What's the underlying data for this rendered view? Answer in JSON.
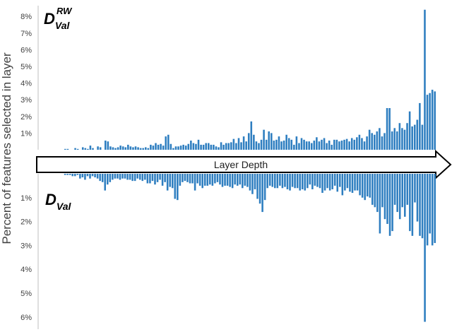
{
  "y_axis_label": "Percent of features selected in layer",
  "arrow_label": "Layer Depth",
  "bar_color": "#2E7EC0",
  "panels": [
    {
      "name": "top",
      "label": {
        "main": "D",
        "sub": "Val",
        "sup": "RW"
      }
    },
    {
      "name": "bottom",
      "label": {
        "main": "D",
        "sub": "Val",
        "sup": ""
      }
    }
  ],
  "chart_data": [
    {
      "type": "bar",
      "panel": "top",
      "title": "",
      "xlabel": "Layer Depth",
      "ylabel": "Percent of features selected in layer",
      "ylim": [
        0,
        8.5
      ],
      "yticks": [
        "1%",
        "2%",
        "3%",
        "4%",
        "5%",
        "6%",
        "7%",
        "8%"
      ],
      "tick_values": [
        1,
        2,
        3,
        4,
        5,
        6,
        7,
        8
      ],
      "grid": false,
      "values": [
        0.0,
        0.0,
        0.0,
        0.0,
        0.0,
        0.0,
        0.0,
        0.0,
        0.0,
        0.05,
        0.05,
        0.0,
        0.0,
        0.1,
        0.05,
        0.0,
        0.15,
        0.1,
        0.05,
        0.25,
        0.1,
        0.0,
        0.2,
        0.15,
        0.0,
        0.55,
        0.5,
        0.2,
        0.15,
        0.1,
        0.15,
        0.25,
        0.2,
        0.15,
        0.3,
        0.2,
        0.15,
        0.2,
        0.15,
        0.1,
        0.1,
        0.15,
        0.1,
        0.3,
        0.25,
        0.4,
        0.3,
        0.35,
        0.25,
        0.8,
        0.9,
        0.35,
        0.1,
        0.2,
        0.2,
        0.25,
        0.3,
        0.25,
        0.35,
        0.55,
        0.4,
        0.35,
        0.6,
        0.3,
        0.3,
        0.4,
        0.4,
        0.3,
        0.3,
        0.2,
        0.15,
        0.45,
        0.3,
        0.4,
        0.4,
        0.45,
        0.65,
        0.4,
        0.7,
        0.45,
        0.8,
        0.5,
        1.0,
        1.7,
        0.9,
        0.5,
        0.4,
        0.6,
        1.2,
        0.6,
        1.1,
        1.0,
        0.55,
        0.6,
        0.8,
        0.5,
        0.55,
        0.9,
        0.7,
        0.6,
        0.3,
        0.8,
        0.4,
        0.7,
        0.6,
        0.5,
        0.5,
        0.4,
        0.55,
        0.75,
        0.5,
        0.6,
        0.7,
        0.4,
        0.55,
        0.3,
        0.6,
        0.6,
        0.5,
        0.55,
        0.6,
        0.65,
        0.5,
        0.7,
        0.6,
        0.75,
        0.9,
        0.7,
        0.5,
        0.8,
        1.2,
        1.0,
        0.9,
        1.1,
        1.3,
        0.8,
        1.0,
        2.5,
        2.5,
        1.1,
        1.3,
        1.1,
        1.6,
        1.3,
        1.2,
        1.6,
        2.3,
        1.4,
        1.5,
        1.8,
        2.8,
        1.5,
        8.4,
        3.3,
        3.4,
        3.6,
        3.5
      ],
      "series": [
        {
          "name": "",
          "values": []
        }
      ]
    },
    {
      "type": "bar",
      "panel": "bottom",
      "title": "",
      "xlabel": "Layer Depth",
      "ylabel": "Percent of features selected in layer",
      "ylim": [
        0,
        6.3
      ],
      "yticks": [
        "1%",
        "2%",
        "3%",
        "4%",
        "5%",
        "6%"
      ],
      "tick_values": [
        1,
        2,
        3,
        4,
        5,
        6
      ],
      "grid": false,
      "values": [
        0.0,
        0.0,
        0.0,
        0.0,
        0.0,
        0.0,
        0.0,
        0.0,
        0.0,
        0.05,
        0.05,
        0.05,
        0.1,
        0.1,
        0.05,
        0.2,
        0.15,
        0.25,
        0.1,
        0.2,
        0.1,
        0.15,
        0.2,
        0.3,
        0.35,
        0.7,
        0.45,
        0.35,
        0.25,
        0.2,
        0.2,
        0.25,
        0.2,
        0.2,
        0.25,
        0.25,
        0.3,
        0.3,
        0.2,
        0.25,
        0.3,
        0.25,
        0.4,
        0.4,
        0.3,
        0.45,
        0.35,
        0.25,
        0.5,
        0.35,
        0.7,
        0.55,
        0.6,
        1.05,
        1.1,
        0.5,
        0.35,
        0.3,
        0.35,
        0.4,
        0.4,
        0.7,
        0.4,
        0.5,
        0.6,
        0.5,
        0.5,
        0.45,
        0.5,
        0.4,
        0.35,
        0.45,
        0.55,
        0.5,
        0.5,
        0.55,
        0.6,
        0.45,
        0.5,
        0.45,
        0.6,
        0.5,
        0.55,
        0.7,
        0.85,
        0.65,
        1.05,
        1.25,
        1.6,
        1.1,
        0.6,
        0.5,
        0.55,
        0.6,
        0.6,
        0.5,
        0.6,
        0.55,
        0.65,
        0.7,
        0.55,
        0.6,
        0.6,
        0.7,
        0.65,
        0.7,
        0.6,
        0.45,
        0.65,
        0.5,
        0.55,
        0.6,
        0.8,
        0.7,
        0.6,
        0.7,
        0.65,
        0.5,
        0.75,
        0.55,
        0.9,
        0.7,
        0.6,
        0.75,
        0.8,
        0.7,
        0.7,
        0.9,
        1.0,
        1.1,
        0.95,
        1.0,
        1.3,
        1.4,
        1.6,
        2.5,
        1.4,
        1.9,
        2.1,
        2.6,
        2.4,
        1.3,
        1.6,
        1.9,
        1.4,
        1.8,
        1.3,
        2.4,
        2.6,
        1.2,
        2.0,
        2.6,
        2.7,
        6.2,
        3.0,
        2.5,
        3.0,
        2.9
      ]
    }
  ]
}
